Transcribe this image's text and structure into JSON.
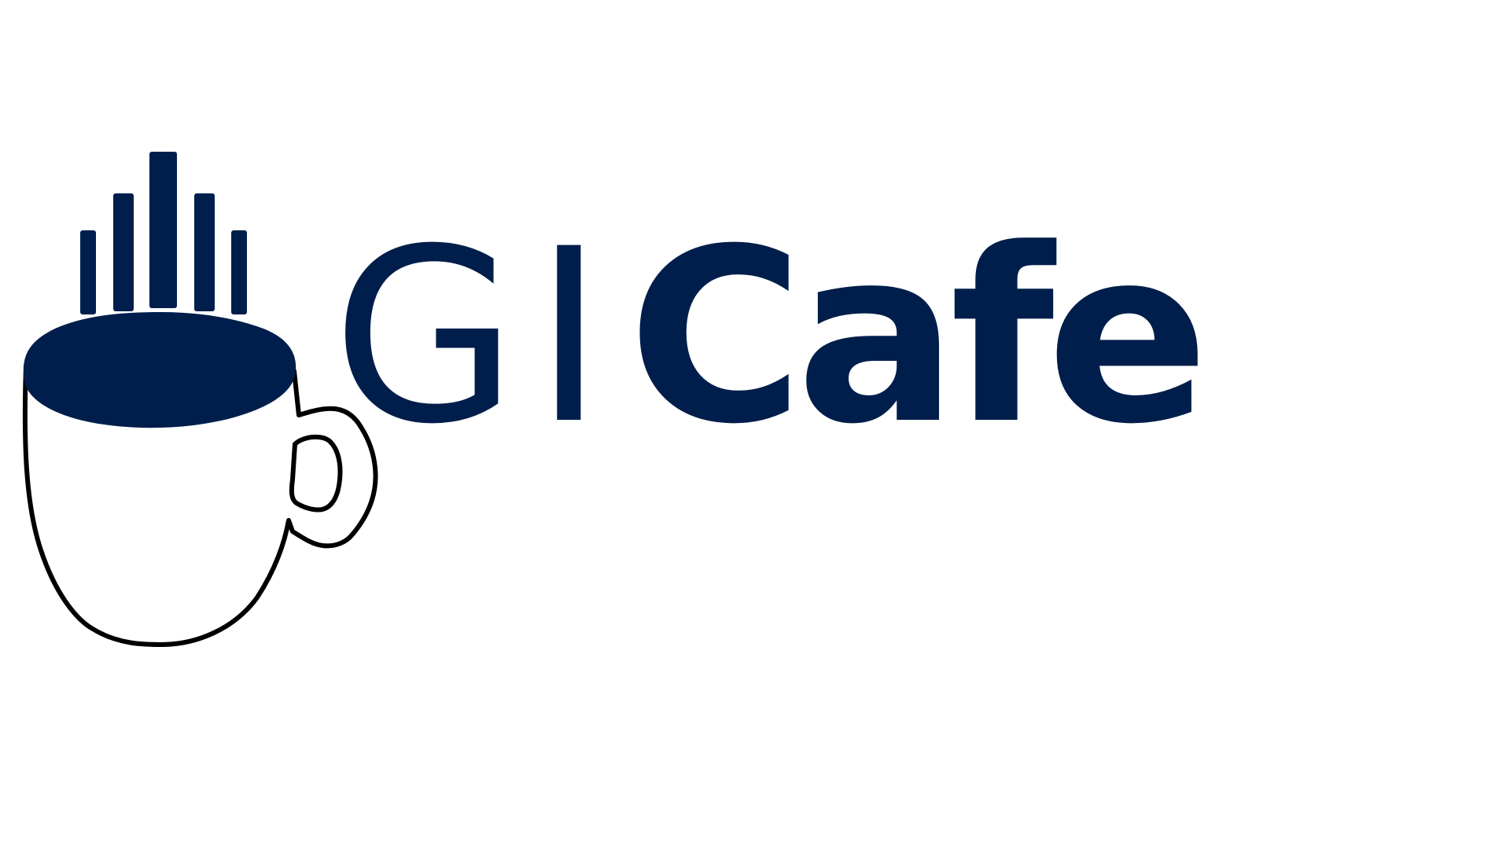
{
  "logo": {
    "text_light": "GI",
    "text_bold": "Cafe",
    "icon": "coffee-mug-icon",
    "steam_icon": "steam-bars-icon",
    "color": "#001e4b",
    "outline_color": "#000000",
    "background": "#ffffff"
  }
}
